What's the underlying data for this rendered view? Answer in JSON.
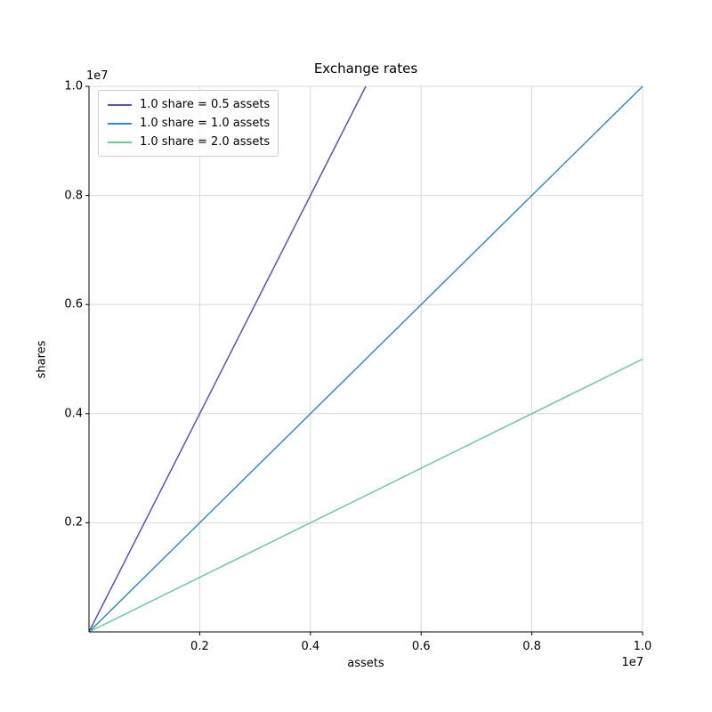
{
  "figure": {
    "title": "Exchange rates",
    "xlabel": "assets",
    "ylabel": "shares",
    "x_offset_text": "1e7",
    "y_offset_text": "1e7"
  },
  "chart_data": {
    "type": "line",
    "title": "Exchange rates",
    "xlabel": "assets",
    "ylabel": "shares",
    "xlim": [
      0,
      10000000
    ],
    "ylim": [
      0,
      10000000
    ],
    "grid": true,
    "legend_position": "upper left",
    "axis_offset_factor": "1e7",
    "x_ticks": {
      "values": [
        2000000,
        4000000,
        6000000,
        8000000,
        10000000
      ],
      "labels": [
        "0.2",
        "0.4",
        "0.6",
        "0.8",
        "1.0"
      ]
    },
    "y_ticks": {
      "values": [
        2000000,
        4000000,
        6000000,
        8000000,
        10000000
      ],
      "labels": [
        "0.2",
        "0.4",
        "0.6",
        "0.8",
        "1.0"
      ]
    },
    "series": [
      {
        "name": "1.0 share = 0.5 assets",
        "color": "#5a53ac",
        "shares_per_asset": 2.0,
        "points": [
          [
            0,
            0
          ],
          [
            5000000,
            10000000
          ]
        ]
      },
      {
        "name": "1.0 share = 1.0 assets",
        "color": "#3a87c1",
        "shares_per_asset": 1.0,
        "points": [
          [
            0,
            0
          ],
          [
            10000000,
            10000000
          ]
        ]
      },
      {
        "name": "1.0 share = 2.0 assets",
        "color": "#6fc69e",
        "shares_per_asset": 0.5,
        "points": [
          [
            0,
            0
          ],
          [
            10000000,
            5000000
          ]
        ]
      }
    ]
  },
  "colors": {
    "grid": "#d8d8d8",
    "spine": "#000000",
    "legend_border": "#cccccc",
    "background": "#ffffff"
  }
}
